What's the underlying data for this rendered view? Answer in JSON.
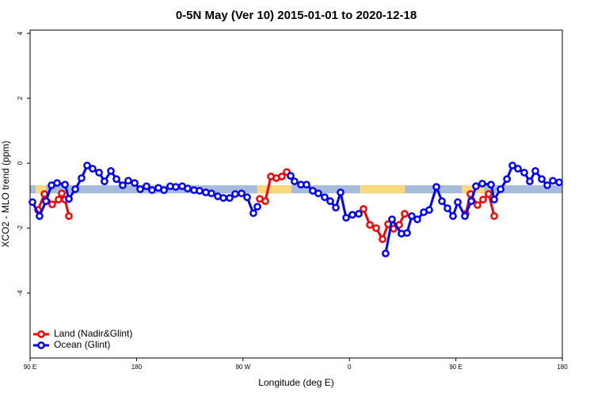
{
  "chart_data": {
    "type": "line",
    "title": "0-5N May (Ver 10)   2015-01-01 to 2020-12-18",
    "x_label": "Longitude (deg E)",
    "y_label": "XCO2 - MLO trend (ppm)",
    "xlim": [
      90,
      540
    ],
    "ylim": [
      -6,
      4.1
    ],
    "xticks": [
      {
        "value": 90,
        "label": "90 E"
      },
      180,
      {
        "value": 270,
        "label": "90 W"
      },
      {
        "value": 360,
        "label": "0"
      },
      {
        "value": 450,
        "label": "90 E"
      },
      {
        "value": 540,
        "label": "180"
      }
    ],
    "yticks": [
      4,
      2,
      0,
      -2,
      -4
    ],
    "legend": "bottom-left",
    "band_ylim": [
      -0.93,
      -0.68
    ],
    "band_color": "#a7bcdc",
    "band_land_color": "#fbd97a",
    "band_land": [
      [
        94.7,
        103.4
      ],
      [
        282,
        311
      ],
      [
        369,
        407
      ],
      [
        455,
        474
      ]
    ],
    "series": [
      {
        "name": "Land (Nadir&Glint)",
        "color": "#ff0000",
        "x": [
          96.7,
          102.1,
          108.7,
          114.1,
          116.8,
          119.5,
          122.8,
          null,
          284.2,
          288.9,
          293.6,
          298.2,
          302.9,
          307.0,
          310.3,
          null,
          371.9,
          377.3,
          382.6,
          388.0,
          392.7,
          397.3,
          402.0,
          406.7,
          null,
          458.3,
          462.3,
          468.3,
          473.0,
          477.7,
          482.4
        ],
        "values": [
          -1.44,
          -0.95,
          -1.27,
          -1.12,
          -0.93,
          -1.12,
          -1.63,
          null,
          -1.1,
          -1.17,
          -0.41,
          -0.46,
          -0.41,
          -0.27,
          -0.39,
          null,
          -1.41,
          -1.9,
          -2.0,
          -2.34,
          -1.88,
          -2.02,
          -1.9,
          -1.56,
          null,
          -1.56,
          -0.95,
          -1.29,
          -1.12,
          -0.95,
          -1.63
        ]
      },
      {
        "name": "Ocean (Glint)",
        "color": "#0000ff",
        "x": [
          92.0,
          98.0,
          103.4,
          108.1,
          112.8,
          119.5,
          122.8,
          128.2,
          133.5,
          138.2,
          142.9,
          148.3,
          152.9,
          158.3,
          163.0,
          168.3,
          173.0,
          178.4,
          183.1,
          188.4,
          193.1,
          198.5,
          203.2,
          208.5,
          213.2,
          218.6,
          223.2,
          228.6,
          233.3,
          238.6,
          243.3,
          248.7,
          253.4,
          258.7,
          263.4,
          268.8,
          273.5,
          278.8,
          282.2,
          null,
          310.3,
          313.6,
          319.0,
          323.7,
          329.0,
          333.7,
          339.1,
          343.8,
          348.5,
          352.5,
          357.2,
          362.5,
          367.9,
          null,
          390.6,
          396.0,
          404.0,
          408.7,
          412.7,
          417.4,
          422.8,
          427.5,
          433.5,
          438.2,
          442.9,
          447.6,
          451.6,
          457.6,
          463.0,
          467.0,
          472.3,
          479.7,
          482.4,
          487.8,
          493.2,
          497.8,
          502.5,
          507.8,
          512.5,
          517.2,
          522.6,
          527.3,
          532.0,
          537.3
        ],
        "values": [
          -1.2,
          -1.63,
          -1.17,
          -0.68,
          -0.61,
          -0.66,
          -1.1,
          -0.8,
          -0.46,
          -0.07,
          -0.17,
          -0.29,
          -0.56,
          -0.24,
          -0.49,
          -0.68,
          -0.54,
          -0.61,
          -0.8,
          -0.71,
          -0.83,
          -0.76,
          -0.83,
          -0.71,
          -0.73,
          -0.71,
          -0.78,
          -0.83,
          -0.85,
          -0.9,
          -0.93,
          -1.02,
          -1.07,
          -1.07,
          -0.95,
          -0.93,
          -1.05,
          -1.54,
          -1.34,
          null,
          -0.39,
          -0.56,
          -0.66,
          -0.66,
          -0.85,
          -0.93,
          -1.05,
          -1.17,
          -1.37,
          -0.9,
          -1.68,
          -1.59,
          -1.56,
          null,
          -2.78,
          -1.73,
          -2.17,
          -2.15,
          -1.63,
          -1.73,
          -1.51,
          -1.44,
          -0.73,
          -1.17,
          -1.39,
          -1.63,
          -1.2,
          -1.63,
          -1.17,
          -0.71,
          -0.63,
          -0.66,
          -1.12,
          -0.8,
          -0.49,
          -0.07,
          -0.17,
          -0.29,
          -0.56,
          -0.24,
          -0.49,
          -0.68,
          -0.54,
          -0.59
        ]
      }
    ]
  }
}
